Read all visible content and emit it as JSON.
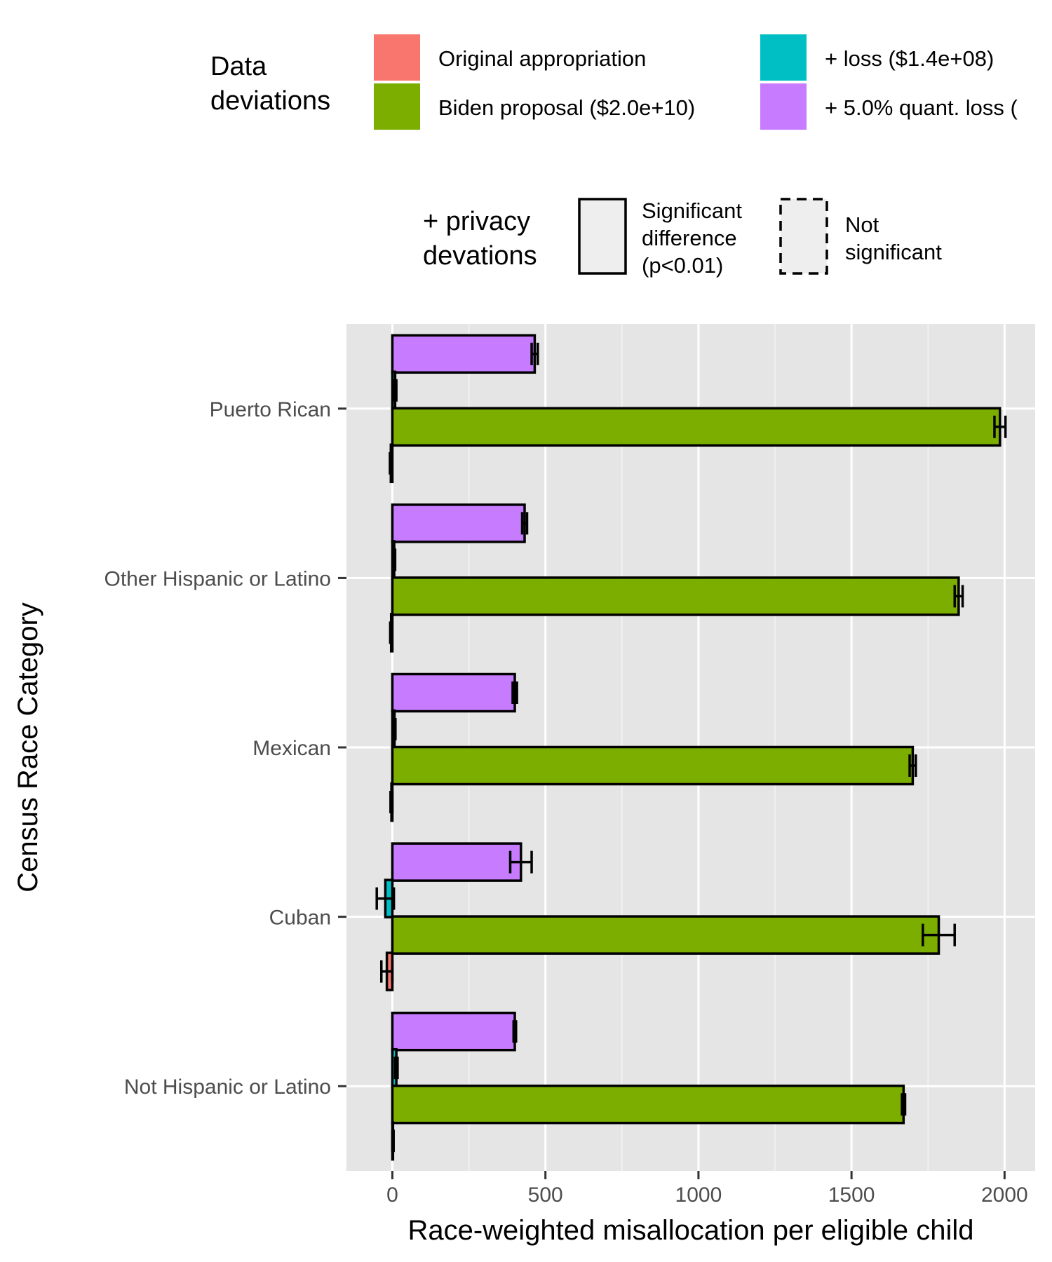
{
  "chart_data": {
    "type": "bar",
    "orientation": "horizontal",
    "xlabel": "Race-weighted misallocation per eligible child",
    "ylabel": "Census Race Category",
    "xlim": [
      -150,
      2100
    ],
    "x_ticks": [
      0,
      500,
      1000,
      1500,
      2000
    ],
    "x_tick_labels": [
      "0",
      "500",
      "1000",
      "1500",
      "2000"
    ],
    "grid": true,
    "categories": [
      "Puerto Rican",
      "Other Hispanic or Latino",
      "Mexican",
      "Cuban",
      "Not Hispanic or Latino"
    ],
    "legend": {
      "placement": "top",
      "data_title": [
        "Data",
        "deviations"
      ],
      "data_items": [
        "Original appropriation",
        "Biden proposal ($2.0e+10)",
        "+ loss ($1.4e+08)",
        "+ 5.0% quant. loss ("
      ],
      "privacy_title": [
        "+ privacy",
        "devations"
      ],
      "privacy_items": [
        [
          "Significant",
          "difference",
          "(p<0.01)"
        ],
        [
          "Not",
          "significant"
        ]
      ]
    },
    "series": [
      {
        "name": "Original appropriation",
        "color": "#F8766D",
        "values": [
          -5,
          -4,
          -3,
          -18,
          2
        ],
        "err": [
          3,
          3,
          3,
          18,
          2
        ]
      },
      {
        "name": "Biden proposal ($2.0e+10)",
        "color": "#7CAE00",
        "values": [
          1985,
          1850,
          1700,
          1785,
          1670
        ],
        "err": [
          18,
          13,
          10,
          52,
          5
        ]
      },
      {
        "name": "+ loss ($1.4e+08)",
        "color": "#00BFC4",
        "values": [
          9,
          6,
          7,
          -23,
          13
        ],
        "err": [
          4,
          3,
          3,
          28,
          4
        ]
      },
      {
        "name": "+ 5.0% quant. loss (",
        "color": "#C77CFF",
        "values": [
          465,
          432,
          400,
          420,
          400
        ],
        "err": [
          10,
          8,
          7,
          35,
          4
        ]
      }
    ]
  }
}
